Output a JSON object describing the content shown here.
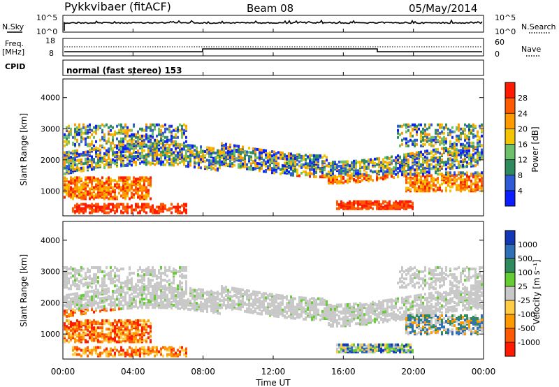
{
  "header": {
    "radar": "Pykkvibaer (fitACF)",
    "beam": "Beam 08",
    "date": "05/May/2014"
  },
  "panels": {
    "nsky": {
      "label": "N.Sky",
      "right_label": "N.Search",
      "ticks_left": [
        "10^5",
        "10^0"
      ],
      "ticks_right": [
        "10^5",
        "10^0"
      ]
    },
    "freq": {
      "label_line1": "Freq.",
      "label_line2": "[MHz]",
      "right_label": "Nave",
      "ticks_left": [
        "18",
        "8"
      ],
      "ticks_right": [
        "60",
        "0"
      ]
    },
    "cpid": {
      "label": "CPID",
      "text": "normal (fast stereo) 153"
    }
  },
  "chart_data": [
    {
      "type": "heatmap",
      "name": "power",
      "ylabel": "Slant Range [km]",
      "yticks": [
        1000,
        2000,
        3000,
        4000
      ],
      "ylim": [
        200,
        4600
      ],
      "colorbar_label": "Power [dB]",
      "colorbar_ticks": [
        4,
        8,
        12,
        16,
        20,
        24,
        28
      ],
      "colors": [
        "#0a1eff",
        "#2f5bd6",
        "#2f8a5e",
        "#6fc06a",
        "#f5c400",
        "#ff9a00",
        "#ff5a00",
        "#ff1a00"
      ]
    },
    {
      "type": "heatmap",
      "name": "velocity",
      "ylabel": "Slant Range [km]",
      "yticks": [
        1000,
        2000,
        3000,
        4000
      ],
      "ylim": [
        200,
        4600
      ],
      "colorbar_label": "Velocity [m s⁻¹]",
      "colorbar_ticks": [
        "1000",
        "500",
        "100",
        "25",
        "-25",
        "-100",
        "-500",
        "-1000"
      ],
      "colors": [
        "#1437b8",
        "#2f6fb8",
        "#2f8a5e",
        "#66cc33",
        "#c8c8c8",
        "#ffcc44",
        "#ff9900",
        "#ff5a00",
        "#ff1a00"
      ]
    }
  ],
  "xaxis": {
    "label": "Time UT",
    "ticks": [
      "00:00",
      "04:00",
      "08:00",
      "12:00",
      "16:00",
      "20:00",
      "00:00"
    ]
  }
}
